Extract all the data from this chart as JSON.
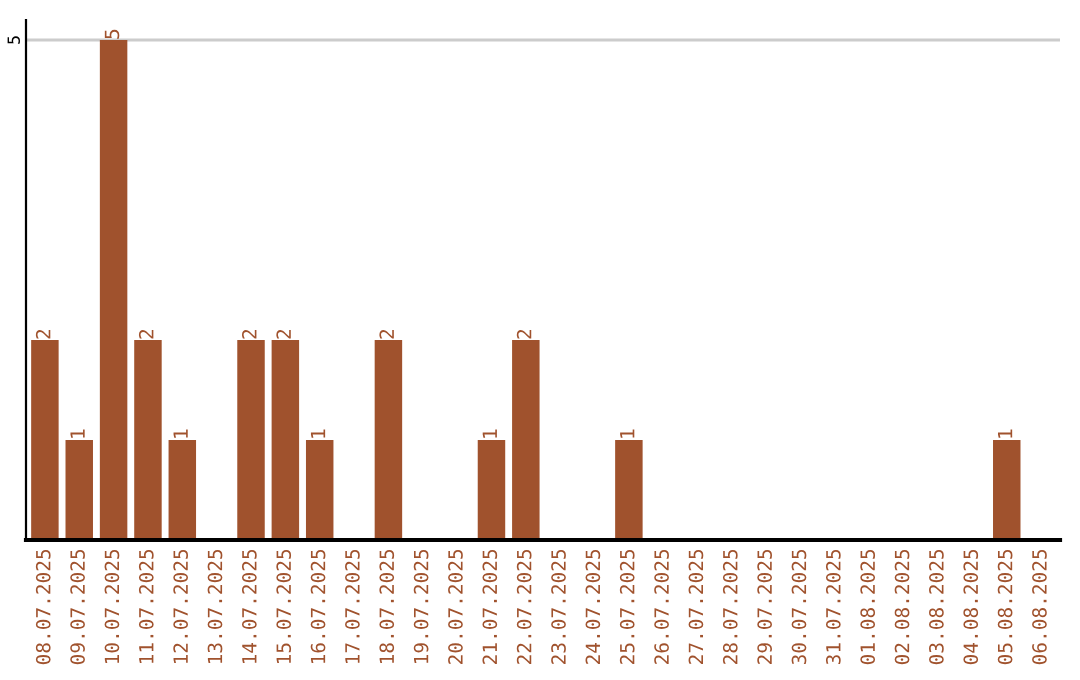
{
  "chart_data": {
    "type": "bar",
    "categories": [
      "08.07.2025",
      "09.07.2025",
      "10.07.2025",
      "11.07.2025",
      "12.07.2025",
      "13.07.2025",
      "14.07.2025",
      "15.07.2025",
      "16.07.2025",
      "17.07.2025",
      "18.07.2025",
      "19.07.2025",
      "20.07.2025",
      "21.07.2025",
      "22.07.2025",
      "23.07.2025",
      "24.07.2025",
      "25.07.2025",
      "26.07.2025",
      "27.07.2025",
      "28.07.2025",
      "29.07.2025",
      "30.07.2025",
      "31.07.2025",
      "01.08.2025",
      "02.08.2025",
      "03.08.2025",
      "04.08.2025",
      "05.08.2025",
      "06.08.2025"
    ],
    "values": [
      2,
      1,
      5,
      2,
      1,
      0,
      2,
      2,
      1,
      0,
      2,
      0,
      0,
      1,
      2,
      0,
      0,
      1,
      0,
      0,
      0,
      0,
      0,
      0,
      0,
      0,
      0,
      0,
      1,
      0
    ],
    "value_labels": [
      "2",
      "1",
      "5",
      "2",
      "1",
      null,
      "2",
      "2",
      "1",
      null,
      "2",
      null,
      null,
      "1",
      "2",
      null,
      null,
      "1",
      null,
      null,
      null,
      null,
      null,
      null,
      null,
      null,
      null,
      null,
      "1",
      null
    ],
    "color": "#a0522d",
    "ylim": [
      0,
      5.2
    ],
    "yticks": [
      5
    ],
    "grid": "y",
    "legend": false
  }
}
